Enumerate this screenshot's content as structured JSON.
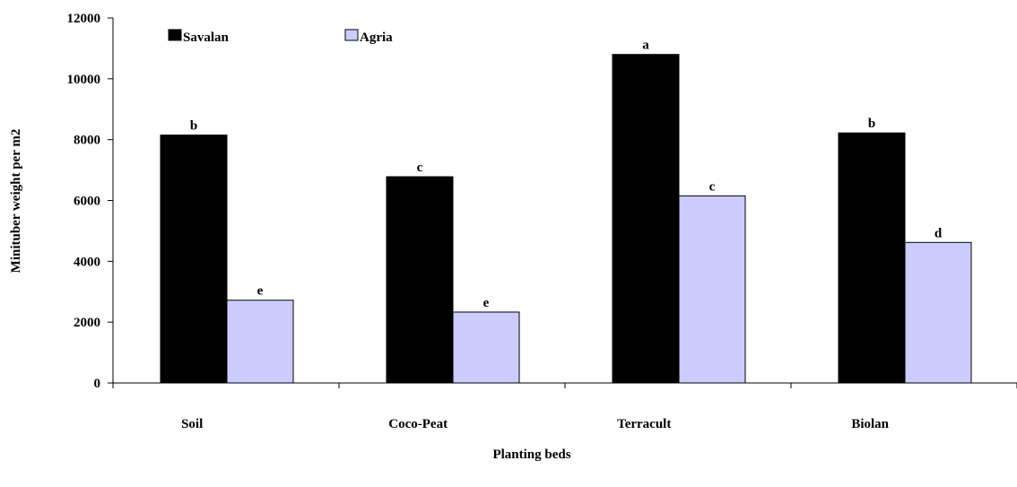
{
  "chart_data": {
    "type": "bar",
    "xlabel": "Planting beds",
    "ylabel": "Minituber weight per m2",
    "ylim": [
      0,
      12000
    ],
    "yticks": [
      0,
      2000,
      4000,
      6000,
      8000,
      10000,
      12000
    ],
    "categories": [
      "Soil",
      "Coco-Peat",
      "Terracult",
      "Biolan"
    ],
    "series": [
      {
        "name": "Savalan",
        "color": "#000000",
        "values": [
          8150,
          6780,
          10800,
          8220
        ],
        "labels": [
          "b",
          "c",
          "a",
          "b"
        ]
      },
      {
        "name": "Agria",
        "color": "#ccccff",
        "values": [
          2720,
          2330,
          6150,
          4620
        ],
        "labels": [
          "e",
          "e",
          "c",
          "d"
        ]
      }
    ],
    "legend": "top-left",
    "grid": false
  }
}
